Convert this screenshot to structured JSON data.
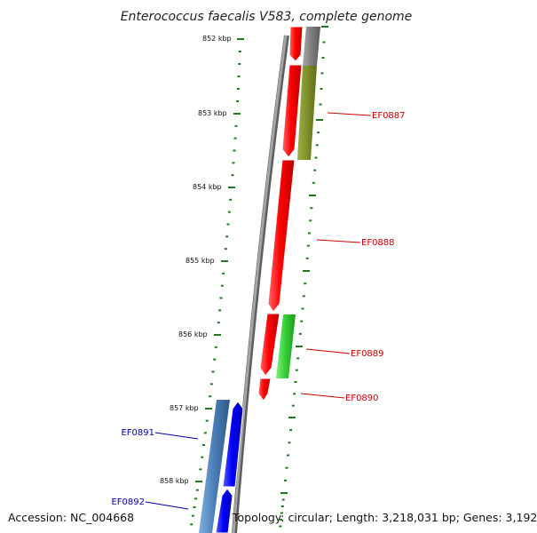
{
  "title": "Enterococcus faecalis V583, complete genome",
  "footer": {
    "accession": "Accession: NC_004668",
    "summary": "Topology: circular; Length: 3,218,031 bp; Genes: 3,192"
  },
  "colors": {
    "background": "#ffffff",
    "backbone": "#8a8a8a",
    "tick": "#1e7a1e",
    "forward_gene": "#ff0000",
    "reverse_gene": "#0000ff",
    "label_forward": "#cc0000",
    "label_reverse": "#0000aa",
    "feature_gray": "#7d7d7d",
    "feature_olive": "#7f8f28",
    "feature_green": "#33cc33",
    "feature_steelblue": "#4a7db5"
  },
  "scale": {
    "unit": "kbp",
    "labels": [
      "852 kbp",
      "853 kbp",
      "854 kbp",
      "855 kbp",
      "856 kbp",
      "857 kbp",
      "858 kbp"
    ]
  },
  "genes": [
    {
      "id": "EF0887",
      "strand": "forward",
      "color": "#cc0000"
    },
    {
      "id": "EF0888",
      "strand": "forward",
      "color": "#cc0000"
    },
    {
      "id": "EF0889",
      "strand": "forward",
      "color": "#cc0000"
    },
    {
      "id": "EF0890",
      "strand": "forward",
      "color": "#cc0000"
    },
    {
      "id": "EF0891",
      "strand": "reverse",
      "color": "#0000aa"
    },
    {
      "id": "EF0892",
      "strand": "reverse",
      "color": "#0000aa"
    }
  ]
}
